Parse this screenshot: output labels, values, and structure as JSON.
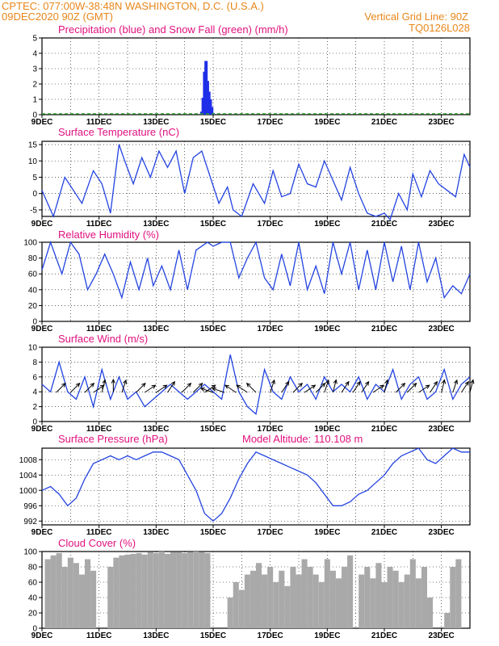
{
  "header": {
    "line1_left": "CPTEC:   077:00W-38:48N   WASHINGTON, D.C. (U.S.A.)",
    "line2_left": "09DEC2020 90Z (GMT)",
    "line2_right": "Vertical Grid Line: 90Z",
    "line3_right": "TQ0126L028",
    "model_altitude": "Model Altitude: 110.108  m"
  },
  "colors": {
    "header": "#e8861a",
    "panel_title": "#e0117f",
    "line": "#2343e0",
    "precip": "#1f2fe8",
    "snow": "#2c9a2c",
    "cloud": "#a9a9a9",
    "arrow": "#000000"
  },
  "x_axis": {
    "start_day": 9,
    "end_day": 24,
    "tick_labels": [
      "9DEC",
      "11DEC",
      "13DEC",
      "15DEC",
      "17DEC",
      "19DEC",
      "21DEC",
      "23DEC"
    ],
    "tick_days": [
      9,
      11,
      13,
      15,
      17,
      19,
      21,
      23
    ]
  },
  "chart_data": [
    {
      "type": "bar",
      "id": "precip",
      "title": "Precipitation (blue) and Snow Fall (green) (mm/h)",
      "ylim": [
        0,
        5
      ],
      "yticks": [
        "0",
        "1",
        "2",
        "3",
        "4",
        "5"
      ],
      "series": [
        {
          "name": "Precipitation",
          "x": [
            14.6,
            14.65,
            14.7,
            14.75,
            14.8,
            14.85,
            14.9,
            14.95,
            15.0
          ],
          "values": [
            0.2,
            1.1,
            2.8,
            3.5,
            2.2,
            1.5,
            1.0,
            0.5,
            0.1
          ]
        },
        {
          "name": "Snow Fall",
          "x": [
            9.0,
            24.0
          ],
          "values": [
            0,
            0
          ]
        }
      ]
    },
    {
      "type": "line",
      "id": "temperature",
      "title": "Surface Temperature (nC)",
      "ylim": [
        -7,
        16
      ],
      "yticks": [
        "-5",
        "0",
        "5",
        "10",
        "15"
      ],
      "ytick_values": [
        -5,
        0,
        5,
        10,
        15
      ],
      "x": [
        9.0,
        9.4,
        9.8,
        10.1,
        10.4,
        10.8,
        11.1,
        11.4,
        11.7,
        11.9,
        12.2,
        12.5,
        12.8,
        13.1,
        13.4,
        13.7,
        14.0,
        14.3,
        14.6,
        14.9,
        15.2,
        15.5,
        15.7,
        16.0,
        16.4,
        16.8,
        17.1,
        17.4,
        17.7,
        18.0,
        18.3,
        18.6,
        18.9,
        19.2,
        19.5,
        19.8,
        20.1,
        20.4,
        20.7,
        21.0,
        21.2,
        21.5,
        21.8,
        22.0,
        22.3,
        22.6,
        22.9,
        23.2,
        23.5,
        23.8,
        24.0
      ],
      "values": [
        1,
        -7,
        5,
        1,
        -3,
        7,
        3,
        -6,
        15,
        10,
        3,
        11,
        5,
        13,
        8,
        13,
        0,
        11,
        13,
        5,
        -3,
        2,
        -5,
        -7,
        3,
        -3,
        7,
        -1,
        0,
        9,
        3,
        2,
        10,
        4,
        -2,
        8,
        0,
        -6,
        -7,
        -6,
        -8,
        0,
        -5,
        6,
        -1,
        7,
        3,
        1,
        -1,
        12,
        8
      ]
    },
    {
      "type": "line",
      "id": "humidity",
      "title": "Relative Humidity (%)",
      "ylim": [
        0,
        100
      ],
      "yticks": [
        "0",
        "20",
        "40",
        "60",
        "80",
        "100"
      ],
      "ytick_values": [
        0,
        20,
        40,
        60,
        80,
        100
      ],
      "x": [
        9.0,
        9.3,
        9.7,
        10.0,
        10.3,
        10.6,
        10.9,
        11.2,
        11.5,
        11.8,
        12.1,
        12.4,
        12.7,
        12.9,
        13.2,
        13.5,
        13.8,
        14.1,
        14.4,
        14.8,
        15.0,
        15.3,
        15.6,
        15.9,
        16.2,
        16.5,
        16.8,
        17.1,
        17.4,
        17.7,
        18.0,
        18.3,
        18.6,
        18.9,
        19.2,
        19.5,
        19.8,
        20.1,
        20.4,
        20.7,
        21.0,
        21.3,
        21.6,
        21.9,
        22.2,
        22.5,
        22.8,
        23.1,
        23.4,
        23.7,
        24.0
      ],
      "values": [
        65,
        100,
        60,
        100,
        85,
        40,
        60,
        85,
        60,
        30,
        75,
        40,
        80,
        45,
        70,
        40,
        90,
        40,
        90,
        100,
        95,
        100,
        100,
        55,
        80,
        100,
        55,
        40,
        85,
        45,
        100,
        40,
        70,
        35,
        100,
        60,
        100,
        40,
        90,
        40,
        100,
        50,
        95,
        40,
        100,
        50,
        80,
        30,
        45,
        35,
        60
      ]
    },
    {
      "type": "line",
      "id": "wind",
      "title": "Surface Wind (m/s)",
      "ylim": [
        0,
        10
      ],
      "yticks": [
        "0",
        "2",
        "4",
        "6",
        "8",
        "10"
      ],
      "ytick_values": [
        0,
        2,
        4,
        6,
        8,
        10
      ],
      "x": [
        9.0,
        9.3,
        9.6,
        9.9,
        10.2,
        10.5,
        10.8,
        11.1,
        11.4,
        11.7,
        12.0,
        12.3,
        12.6,
        12.9,
        13.2,
        13.5,
        13.8,
        14.1,
        14.4,
        14.7,
        15.0,
        15.3,
        15.6,
        15.9,
        16.2,
        16.5,
        16.8,
        17.1,
        17.4,
        17.7,
        18.0,
        18.3,
        18.6,
        18.9,
        19.2,
        19.5,
        19.8,
        20.1,
        20.4,
        20.7,
        21.0,
        21.3,
        21.6,
        21.9,
        22.2,
        22.5,
        22.8,
        23.1,
        23.4,
        23.7,
        24.0
      ],
      "values": [
        5,
        4,
        8,
        4,
        3,
        6,
        2,
        7,
        3,
        6,
        3,
        4,
        2,
        3,
        4,
        5,
        4,
        3,
        4,
        5,
        4,
        3,
        9,
        4,
        2,
        1,
        7,
        4,
        3,
        6,
        4,
        5,
        3,
        6,
        4,
        5,
        4,
        6,
        3,
        5,
        4,
        7,
        3,
        5,
        6,
        3,
        4,
        7,
        3,
        5,
        6
      ],
      "arrows_x": [
        9.5,
        10.0,
        10.5,
        10.8,
        11.1,
        11.5,
        11.8,
        12.3,
        12.6,
        13.0,
        13.4,
        13.9,
        14.3,
        14.7,
        15.0,
        15.4,
        15.8,
        16.2,
        16.5,
        17.0,
        17.4,
        17.8,
        18.2,
        18.6,
        18.9,
        19.2,
        19.5,
        19.9,
        20.2,
        20.6,
        21.0,
        21.4,
        21.8,
        22.2,
        22.6,
        23.0,
        23.4,
        23.7,
        24.0
      ],
      "arrows_u": [
        3,
        3,
        2,
        3,
        1,
        0,
        1,
        2,
        3,
        3,
        2,
        3,
        3,
        3,
        -3,
        -3,
        -3,
        -3,
        -2,
        1,
        2,
        3,
        3,
        2,
        1,
        1,
        2,
        2,
        2,
        3,
        1,
        2,
        3,
        3,
        2,
        1,
        1,
        2,
        1
      ],
      "arrows_v": [
        3,
        3,
        2,
        2,
        4,
        4,
        3,
        2,
        2,
        2,
        3,
        3,
        3,
        2,
        1,
        1,
        2,
        2,
        2,
        3,
        3,
        3,
        2,
        2,
        3,
        4,
        3,
        3,
        3,
        2,
        4,
        2,
        3,
        2,
        3,
        4,
        3,
        3,
        4
      ]
    },
    {
      "type": "line",
      "id": "pressure",
      "title": "Surface Pressure (hPa)",
      "ylim": [
        991,
        1011
      ],
      "yticks": [
        "992",
        "996",
        "1000",
        "1004",
        "1008"
      ],
      "ytick_values": [
        992,
        996,
        1000,
        1004,
        1008
      ],
      "x": [
        9.0,
        9.3,
        9.6,
        9.9,
        10.2,
        10.5,
        10.8,
        11.1,
        11.4,
        11.7,
        12.0,
        12.3,
        12.6,
        12.9,
        13.2,
        13.5,
        13.8,
        14.1,
        14.4,
        14.7,
        15.0,
        15.3,
        15.6,
        15.9,
        16.2,
        16.5,
        16.8,
        17.1,
        17.4,
        17.7,
        18.0,
        18.3,
        18.6,
        18.9,
        19.2,
        19.5,
        19.8,
        20.1,
        20.4,
        20.7,
        21.0,
        21.3,
        21.6,
        21.9,
        22.2,
        22.5,
        22.8,
        23.1,
        23.4,
        23.7,
        24.0
      ],
      "values": [
        1000,
        1001,
        999,
        996,
        998,
        1003,
        1007,
        1008,
        1009,
        1008,
        1009,
        1008,
        1009,
        1010,
        1010,
        1009,
        1008,
        1004,
        1000,
        994,
        992,
        994,
        998,
        1003,
        1007,
        1010,
        1009,
        1008,
        1007,
        1006,
        1005,
        1004,
        1002,
        999,
        996,
        996,
        997,
        999,
        1000,
        1002,
        1004,
        1007,
        1009,
        1010,
        1011,
        1008,
        1007,
        1009,
        1011,
        1010,
        1010
      ]
    },
    {
      "type": "bar",
      "id": "cloud",
      "title": "Cloud Cover (%)",
      "ylim": [
        0,
        100
      ],
      "yticks": [
        "0",
        "20",
        "40",
        "60",
        "80",
        "100"
      ],
      "ytick_values": [
        0,
        20,
        40,
        60,
        80,
        100
      ],
      "x": [
        9.2,
        9.4,
        9.6,
        9.8,
        10.0,
        10.2,
        10.4,
        10.6,
        10.8,
        11.0,
        11.2,
        11.4,
        11.6,
        11.8,
        12.0,
        12.2,
        12.4,
        12.6,
        12.8,
        13.0,
        13.2,
        13.4,
        13.6,
        13.8,
        14.0,
        14.2,
        14.4,
        14.6,
        14.8,
        15.0,
        15.2,
        15.4,
        15.6,
        15.8,
        16.0,
        16.2,
        16.4,
        16.6,
        16.8,
        17.0,
        17.2,
        17.4,
        17.6,
        17.8,
        18.0,
        18.2,
        18.4,
        18.6,
        18.8,
        19.0,
        19.2,
        19.4,
        19.6,
        19.8,
        20.0,
        20.2,
        20.4,
        20.6,
        20.8,
        21.0,
        21.2,
        21.4,
        21.6,
        21.8,
        22.0,
        22.2,
        22.4,
        22.6,
        22.8,
        23.0,
        23.2,
        23.4,
        23.6,
        23.8
      ],
      "values": [
        90,
        95,
        98,
        80,
        92,
        85,
        70,
        90,
        75,
        0,
        0,
        80,
        92,
        95,
        96,
        97,
        98,
        96,
        99,
        98,
        100,
        97,
        99,
        99,
        98,
        99,
        100,
        99,
        98,
        0,
        0,
        0,
        40,
        60,
        50,
        70,
        75,
        85,
        70,
        80,
        60,
        75,
        55,
        80,
        70,
        90,
        80,
        70,
        60,
        90,
        75,
        65,
        80,
        95,
        0,
        70,
        80,
        65,
        85,
        60,
        80,
        75,
        60,
        70,
        90,
        65,
        80,
        40,
        0,
        0,
        20,
        80,
        90,
        0
      ]
    }
  ]
}
